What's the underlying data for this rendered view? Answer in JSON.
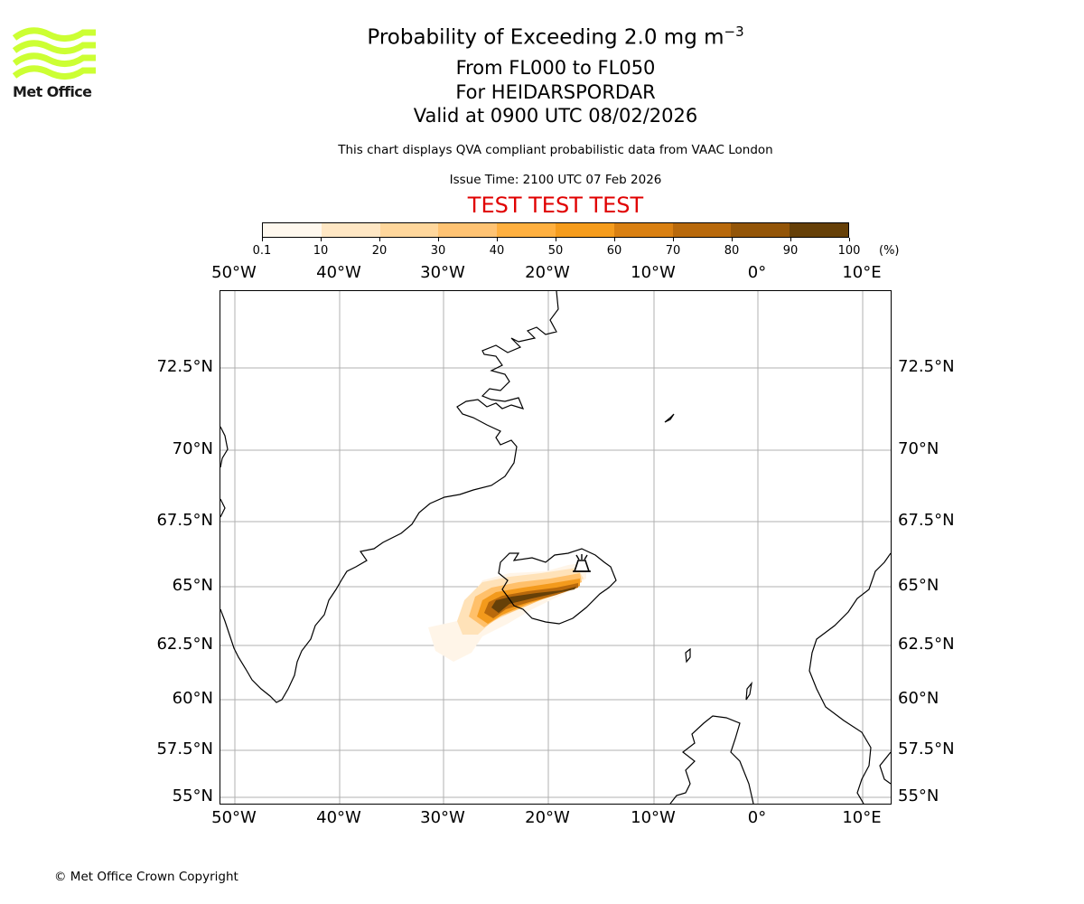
{
  "logo": {
    "text": "Met Office",
    "color": "#ccff33"
  },
  "title": {
    "main": "Probability of Exceeding 2.0 mg m",
    "superscript": "−3"
  },
  "subtitle": {
    "levels": "From FL000 to FL050",
    "volcano": "For HEIDARSPORDAR",
    "valid": "Valid at 0900 UTC 08/02/2026"
  },
  "description": "This chart displays QVA compliant probabilistic data from VAAC London",
  "issue_time": "Issue Time: 2100 UTC 07 Feb 2026",
  "banner": {
    "text": "TEST TEST TEST",
    "color": "#e00000"
  },
  "colorbar": {
    "ticks": [
      "0.1",
      "10",
      "20",
      "30",
      "40",
      "50",
      "60",
      "70",
      "80",
      "90",
      "100"
    ],
    "unit": "(%)",
    "colors": [
      "#fff8ee",
      "#ffe7c4",
      "#ffd79c",
      "#ffc373",
      "#ffb040",
      "#f59c1d",
      "#d98012",
      "#b8690c",
      "#935508",
      "#664008"
    ]
  },
  "map": {
    "lon_labels": [
      "50°W",
      "40°W",
      "30°W",
      "20°W",
      "10°W",
      "0°",
      "10°E"
    ],
    "lat_labels": [
      "72.5°N",
      "70°N",
      "67.5°N",
      "65°N",
      "62.5°N",
      "60°N",
      "57.5°N",
      "55°N"
    ],
    "volcano_icon": "volcano-icon"
  },
  "copyright": "© Met Office Crown Copyright"
}
